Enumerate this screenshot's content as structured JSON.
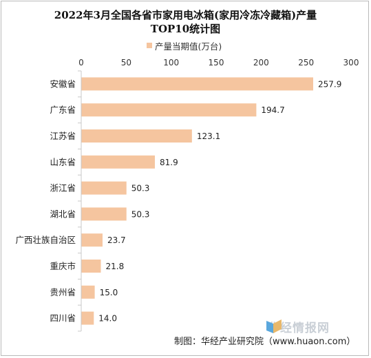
{
  "title_line1": "2022年3月全国各省市家用电冰箱(家用冷冻冷藏箱)产量",
  "title_line2": "TOP10统计图",
  "legend": "产量当期值(万台)",
  "watermark": "华经情报网",
  "source": "制图：华经产业研究院（www.huaon.com）",
  "colors": {
    "bar": "#f5c59f",
    "axis": "#c8c8c8"
  },
  "chart_data": {
    "type": "bar",
    "orientation": "horizontal",
    "title": "2022年3月全国各省市家用电冰箱(家用冷冻冷藏箱)产量TOP10统计图",
    "categories": [
      "安徽省",
      "广东省",
      "江苏省",
      "山东省",
      "浙江省",
      "湖北省",
      "广西壮族自治区",
      "重庆市",
      "贵州省",
      "四川省"
    ],
    "series": [
      {
        "name": "产量当期值(万台)",
        "values": [
          257.9,
          194.7,
          123.1,
          81.9,
          50.3,
          50.3,
          23.7,
          21.8,
          15.0,
          14.0
        ]
      }
    ],
    "value_labels": [
      "257.9",
      "194.7",
      "123.1",
      "81.9",
      "50.3",
      "50.3",
      "23.7",
      "21.8",
      "15.0",
      "14.0"
    ],
    "xlim": [
      0,
      300
    ],
    "xticks": [
      "0",
      "50",
      "100",
      "150",
      "200",
      "250",
      "300"
    ],
    "grid": false,
    "legend_position": "top"
  }
}
